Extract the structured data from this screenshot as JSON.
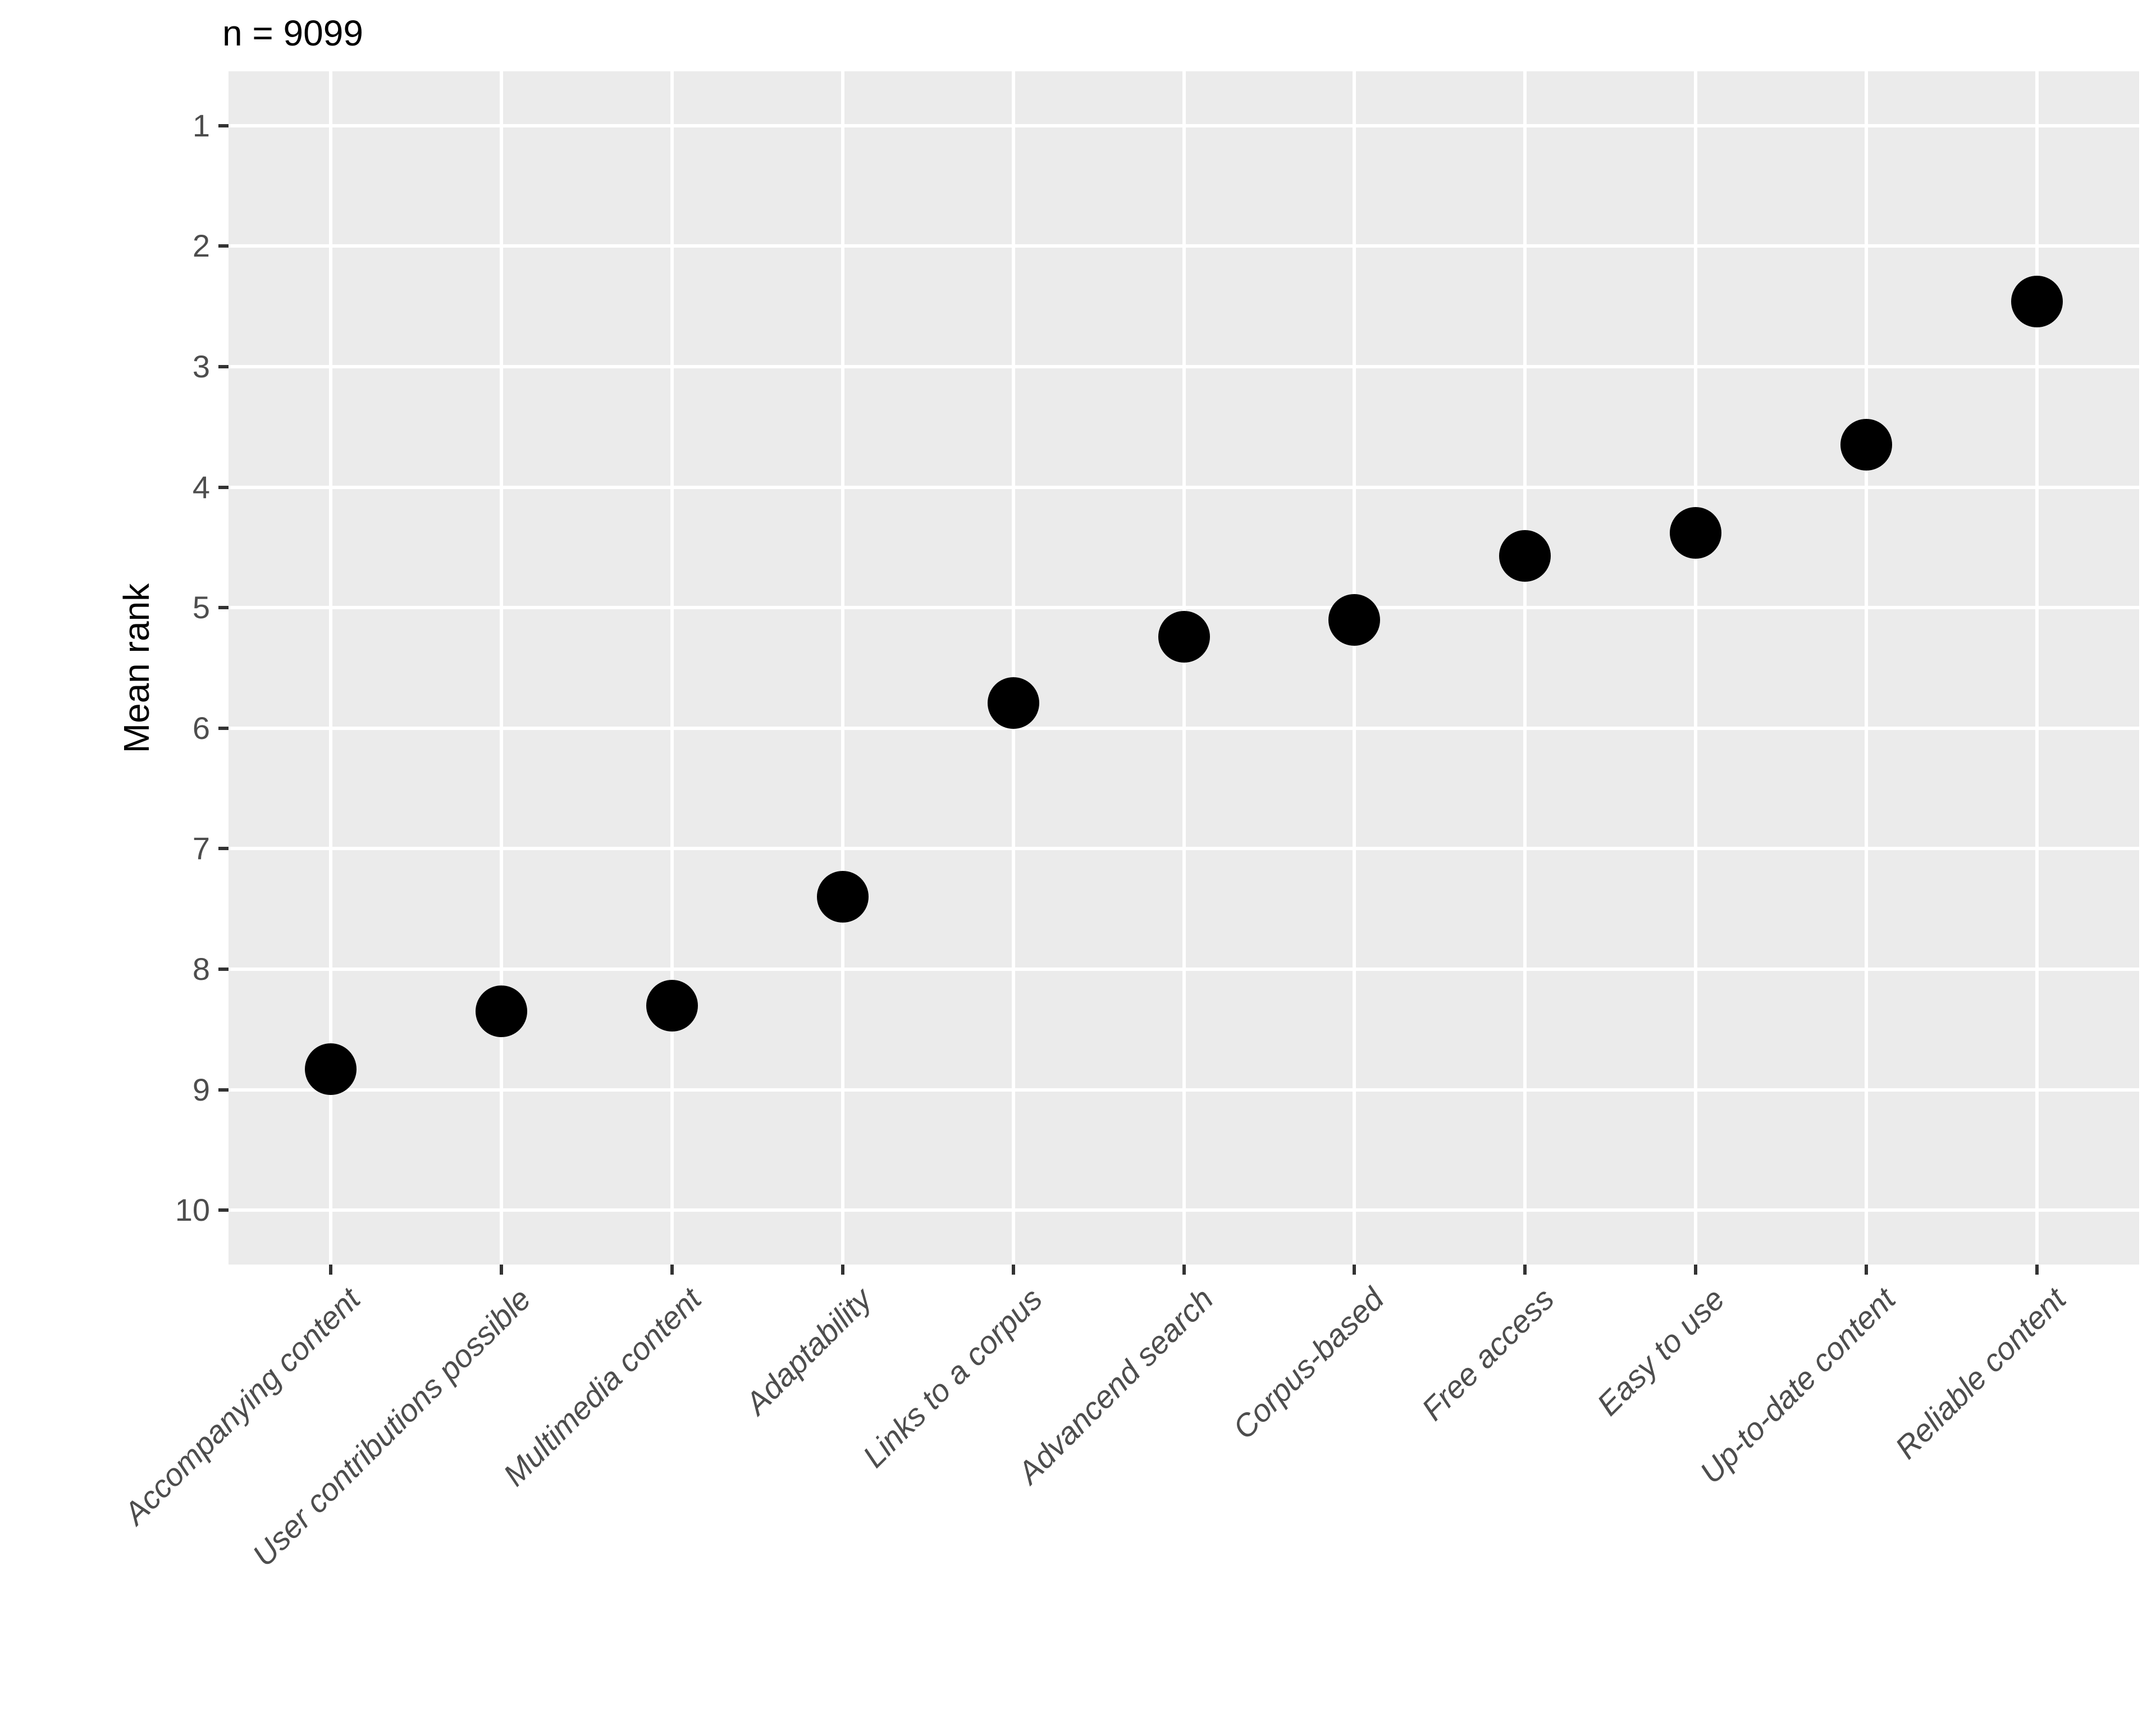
{
  "chart_data": {
    "type": "scatter",
    "title": "n = 9099",
    "xlabel": "",
    "ylabel": "Mean rank",
    "categories": [
      "Accompanying content",
      "User contributions possible",
      "Multimedia content",
      "Adaptability",
      "Links to a corpus",
      "Advancend search",
      "Corpus-based",
      "Free access",
      "Easy to use",
      "Up-to-date content",
      "Reliable content"
    ],
    "values": [
      8.83,
      8.35,
      8.3,
      7.4,
      5.79,
      5.24,
      5.1,
      4.57,
      4.38,
      3.65,
      2.46
    ],
    "y_ticks": [
      "1",
      "2",
      "3",
      "4",
      "5",
      "6",
      "7",
      "8",
      "9",
      "10"
    ],
    "ylim": [
      0.55,
      10.45
    ],
    "y_axis_reversed": true,
    "grid": "major-only",
    "legend": "none",
    "colors": {
      "panel_bg": "#EBEBEB",
      "grid": "#FFFFFF",
      "point": "#000000",
      "axis_text": "#4D4D4D",
      "title_text": "#000000",
      "tick_mark": "#333333"
    }
  }
}
